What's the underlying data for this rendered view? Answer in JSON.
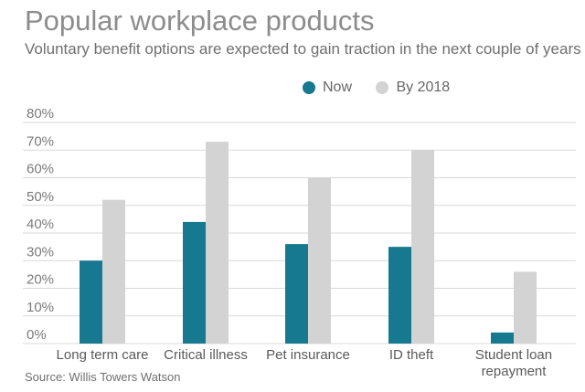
{
  "header": {
    "title": "Popular workplace products",
    "subtitle": "Voluntary benefit options are expected to gain traction in the next couple of years"
  },
  "footer": {
    "source": "Source: Willis Towers Watson"
  },
  "colors": {
    "now": "#17798f",
    "by2018": "#d3d3d4",
    "grid": "#d9d9d9"
  },
  "chart_data": {
    "type": "bar",
    "title": "Popular workplace products",
    "subtitle": "Voluntary benefit options are expected to gain traction in the next couple of years",
    "xlabel": "",
    "ylabel": "",
    "categories": [
      "Long term care",
      "Critical illness",
      "Pet insurance",
      "ID theft",
      "Student loan repayment"
    ],
    "category_lines": [
      [
        "Long term care"
      ],
      [
        "Critical illness"
      ],
      [
        "Pet insurance"
      ],
      [
        "ID theft"
      ],
      [
        "Student loan",
        "repayment"
      ]
    ],
    "series": [
      {
        "name": "Now",
        "values": [
          30,
          44,
          36,
          35,
          4
        ]
      },
      {
        "name": "By 2018",
        "values": [
          52,
          73,
          60,
          70,
          26
        ]
      }
    ],
    "ylim": [
      0,
      80
    ],
    "yticks": [
      "0%",
      "10%",
      "20%",
      "30%",
      "40%",
      "50%",
      "60%",
      "70%",
      "80%"
    ],
    "grid": true,
    "legend_position": "top-right"
  }
}
